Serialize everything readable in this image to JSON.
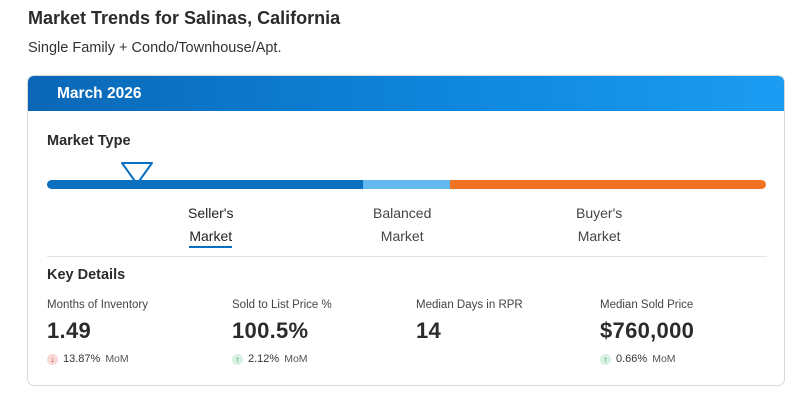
{
  "header": {
    "title": "Market Trends for Salinas, California",
    "subtitle": "Single Family + Condo/Townhouse/Apt."
  },
  "card": {
    "period": "March 2026",
    "market_type": {
      "title": "Market Type",
      "segments": [
        {
          "label_line1": "Seller's",
          "label_line2": "Market",
          "color": "#0b6fc0"
        },
        {
          "label_line1": "Balanced",
          "label_line2": "Market",
          "color": "#62b9f2"
        },
        {
          "label_line1": "Buyer's",
          "label_line2": "Market",
          "color": "#ef7322"
        }
      ],
      "selected": "Seller's Market"
    },
    "key_details": {
      "title": "Key Details",
      "metrics": [
        {
          "label": "Months of Inventory",
          "value": "1.49",
          "change": "13.87%",
          "direction": "down",
          "period": "MoM"
        },
        {
          "label": "Sold to List Price %",
          "value": "100.5%",
          "change": "2.12%",
          "direction": "up",
          "period": "MoM"
        },
        {
          "label": "Median Days in RPR",
          "value": "14"
        },
        {
          "label": "Median Sold Price",
          "value": "$760,000",
          "change": "0.66%",
          "direction": "up",
          "period": "MoM"
        }
      ]
    }
  },
  "icons": {
    "arrow_down": "↓",
    "arrow_up": "↑"
  }
}
